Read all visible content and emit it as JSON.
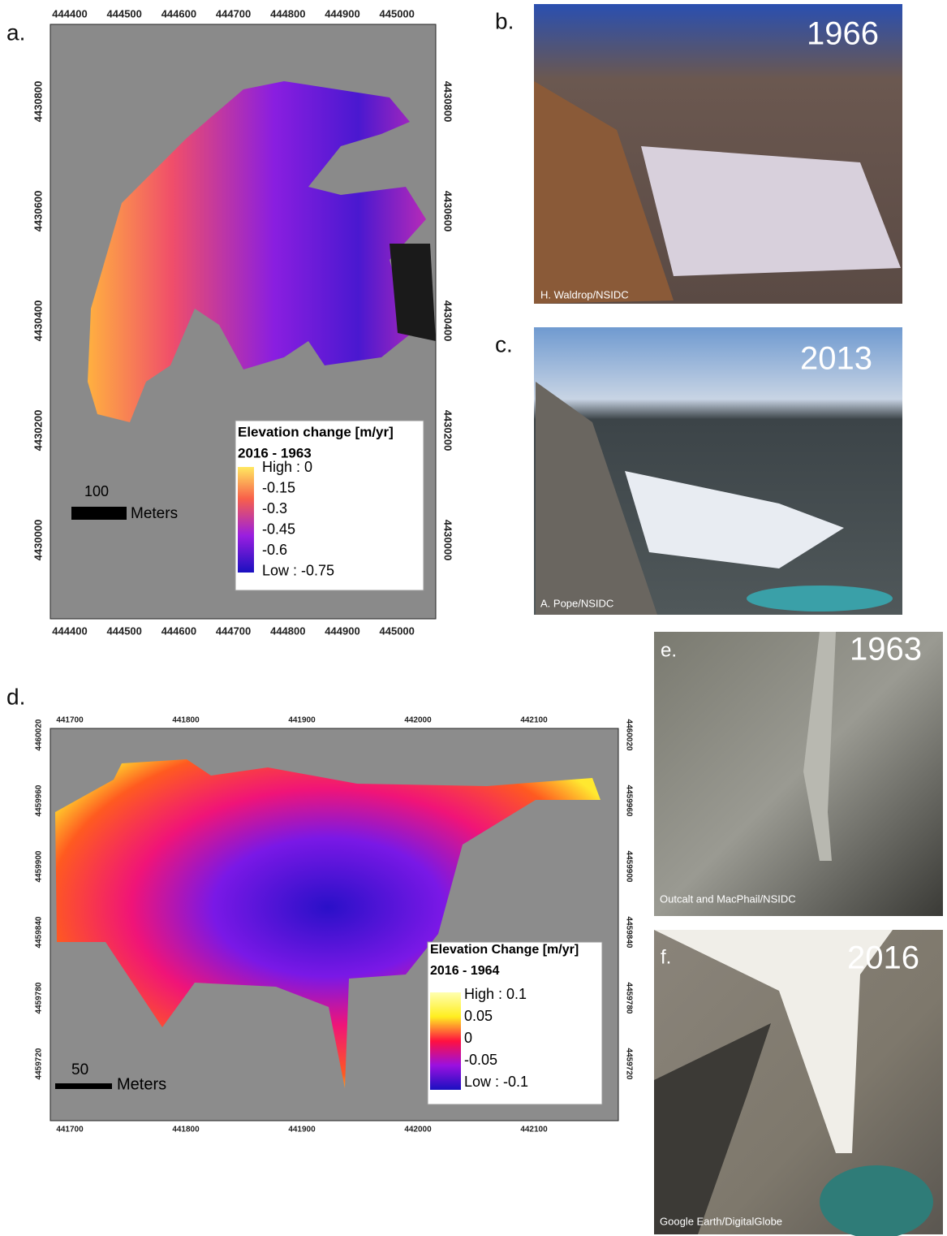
{
  "panels": {
    "a": {
      "label": "a.",
      "x_ticks": [
        444400,
        444500,
        444600,
        444700,
        444800,
        444900,
        445000
      ],
      "y_ticks": [
        4430800,
        4430600,
        4430400,
        4430200,
        4430000
      ],
      "legend": {
        "title": "Elevation change [m/yr]",
        "period": "2016 - 1963",
        "labels": [
          "High : 0",
          "-0.15",
          "-0.3",
          "-0.45",
          "-0.6",
          "Low : -0.75"
        ]
      },
      "scale_bar": {
        "distance": "100",
        "unit": "Meters"
      }
    },
    "b": {
      "label": "b.",
      "year": "1966",
      "credit": "H. Waldrop/NSIDC"
    },
    "c": {
      "label": "c.",
      "year": "2013",
      "credit": "A. Pope/NSIDC"
    },
    "d": {
      "label": "d.",
      "x_ticks": [
        441700,
        441800,
        441900,
        442000,
        442100
      ],
      "y_ticks": [
        4460020,
        4459960,
        4459900,
        4459840,
        4459780,
        4459720
      ],
      "legend": {
        "title": "Elevation Change [m/yr]",
        "period": "2016 - 1964",
        "labels": [
          "High : 0.1",
          "0.05",
          "0",
          "-0.05",
          "Low : -0.1"
        ]
      },
      "scale_bar": {
        "distance": "50",
        "unit": "Meters"
      }
    },
    "e": {
      "label": "e.",
      "year": "1963",
      "credit": "Outcalt and MacPhail/NSIDC"
    },
    "f": {
      "label": "f.",
      "year": "2016",
      "credit": "Google Earth/DigitalGlobe"
    }
  }
}
